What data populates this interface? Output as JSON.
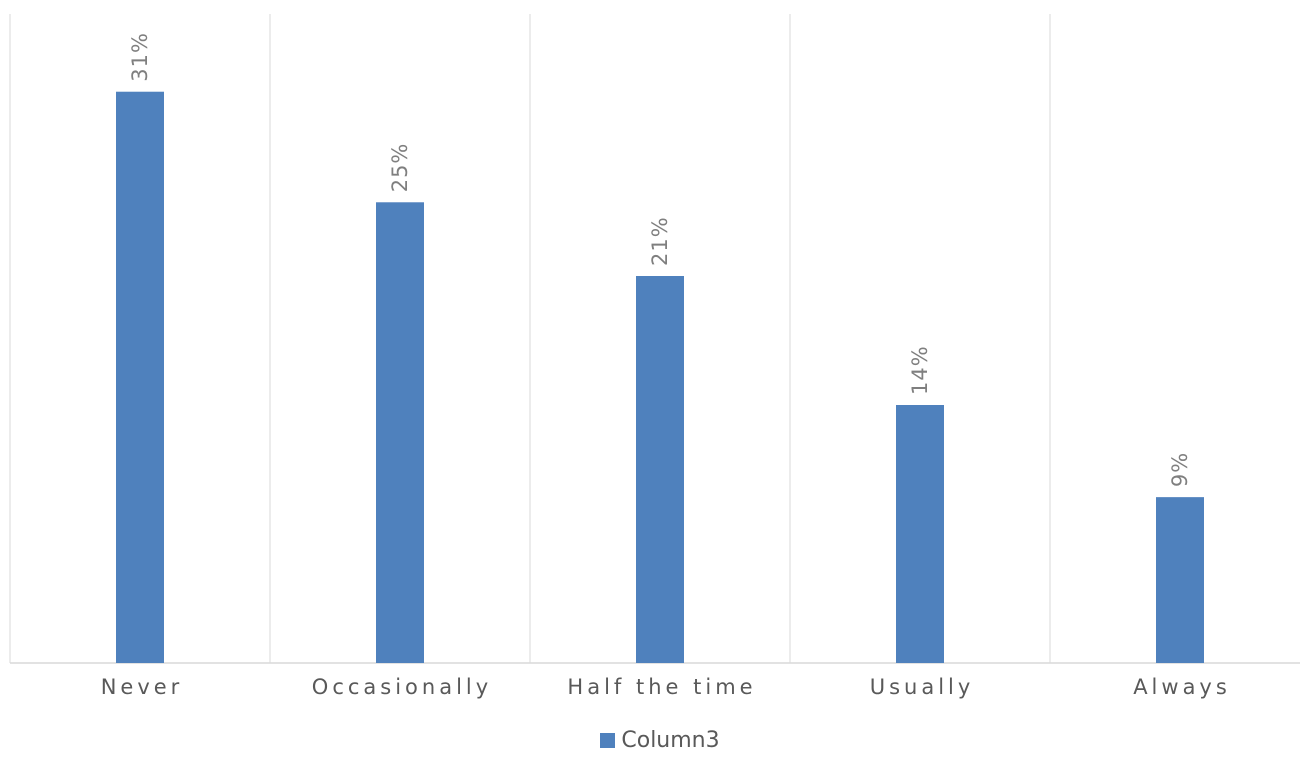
{
  "chart_data": {
    "type": "bar",
    "categories": [
      "Never",
      "Occasionally",
      "Half the time",
      "Usually",
      "Always"
    ],
    "series": [
      {
        "name": "Column3",
        "values": [
          0.31,
          0.25,
          0.21,
          0.14,
          0.09
        ],
        "labels": [
          "31%",
          "25%",
          "21%",
          "14%",
          "9%"
        ],
        "color": "#4F81BD"
      }
    ],
    "ylim": [
      0,
      0.35
    ],
    "grid": "vertical category separators",
    "legend": "bottom-center",
    "colors": {
      "bar": "#4F81BD",
      "gridline": "#d9d9d9",
      "axis": "#d9d9d9"
    }
  }
}
